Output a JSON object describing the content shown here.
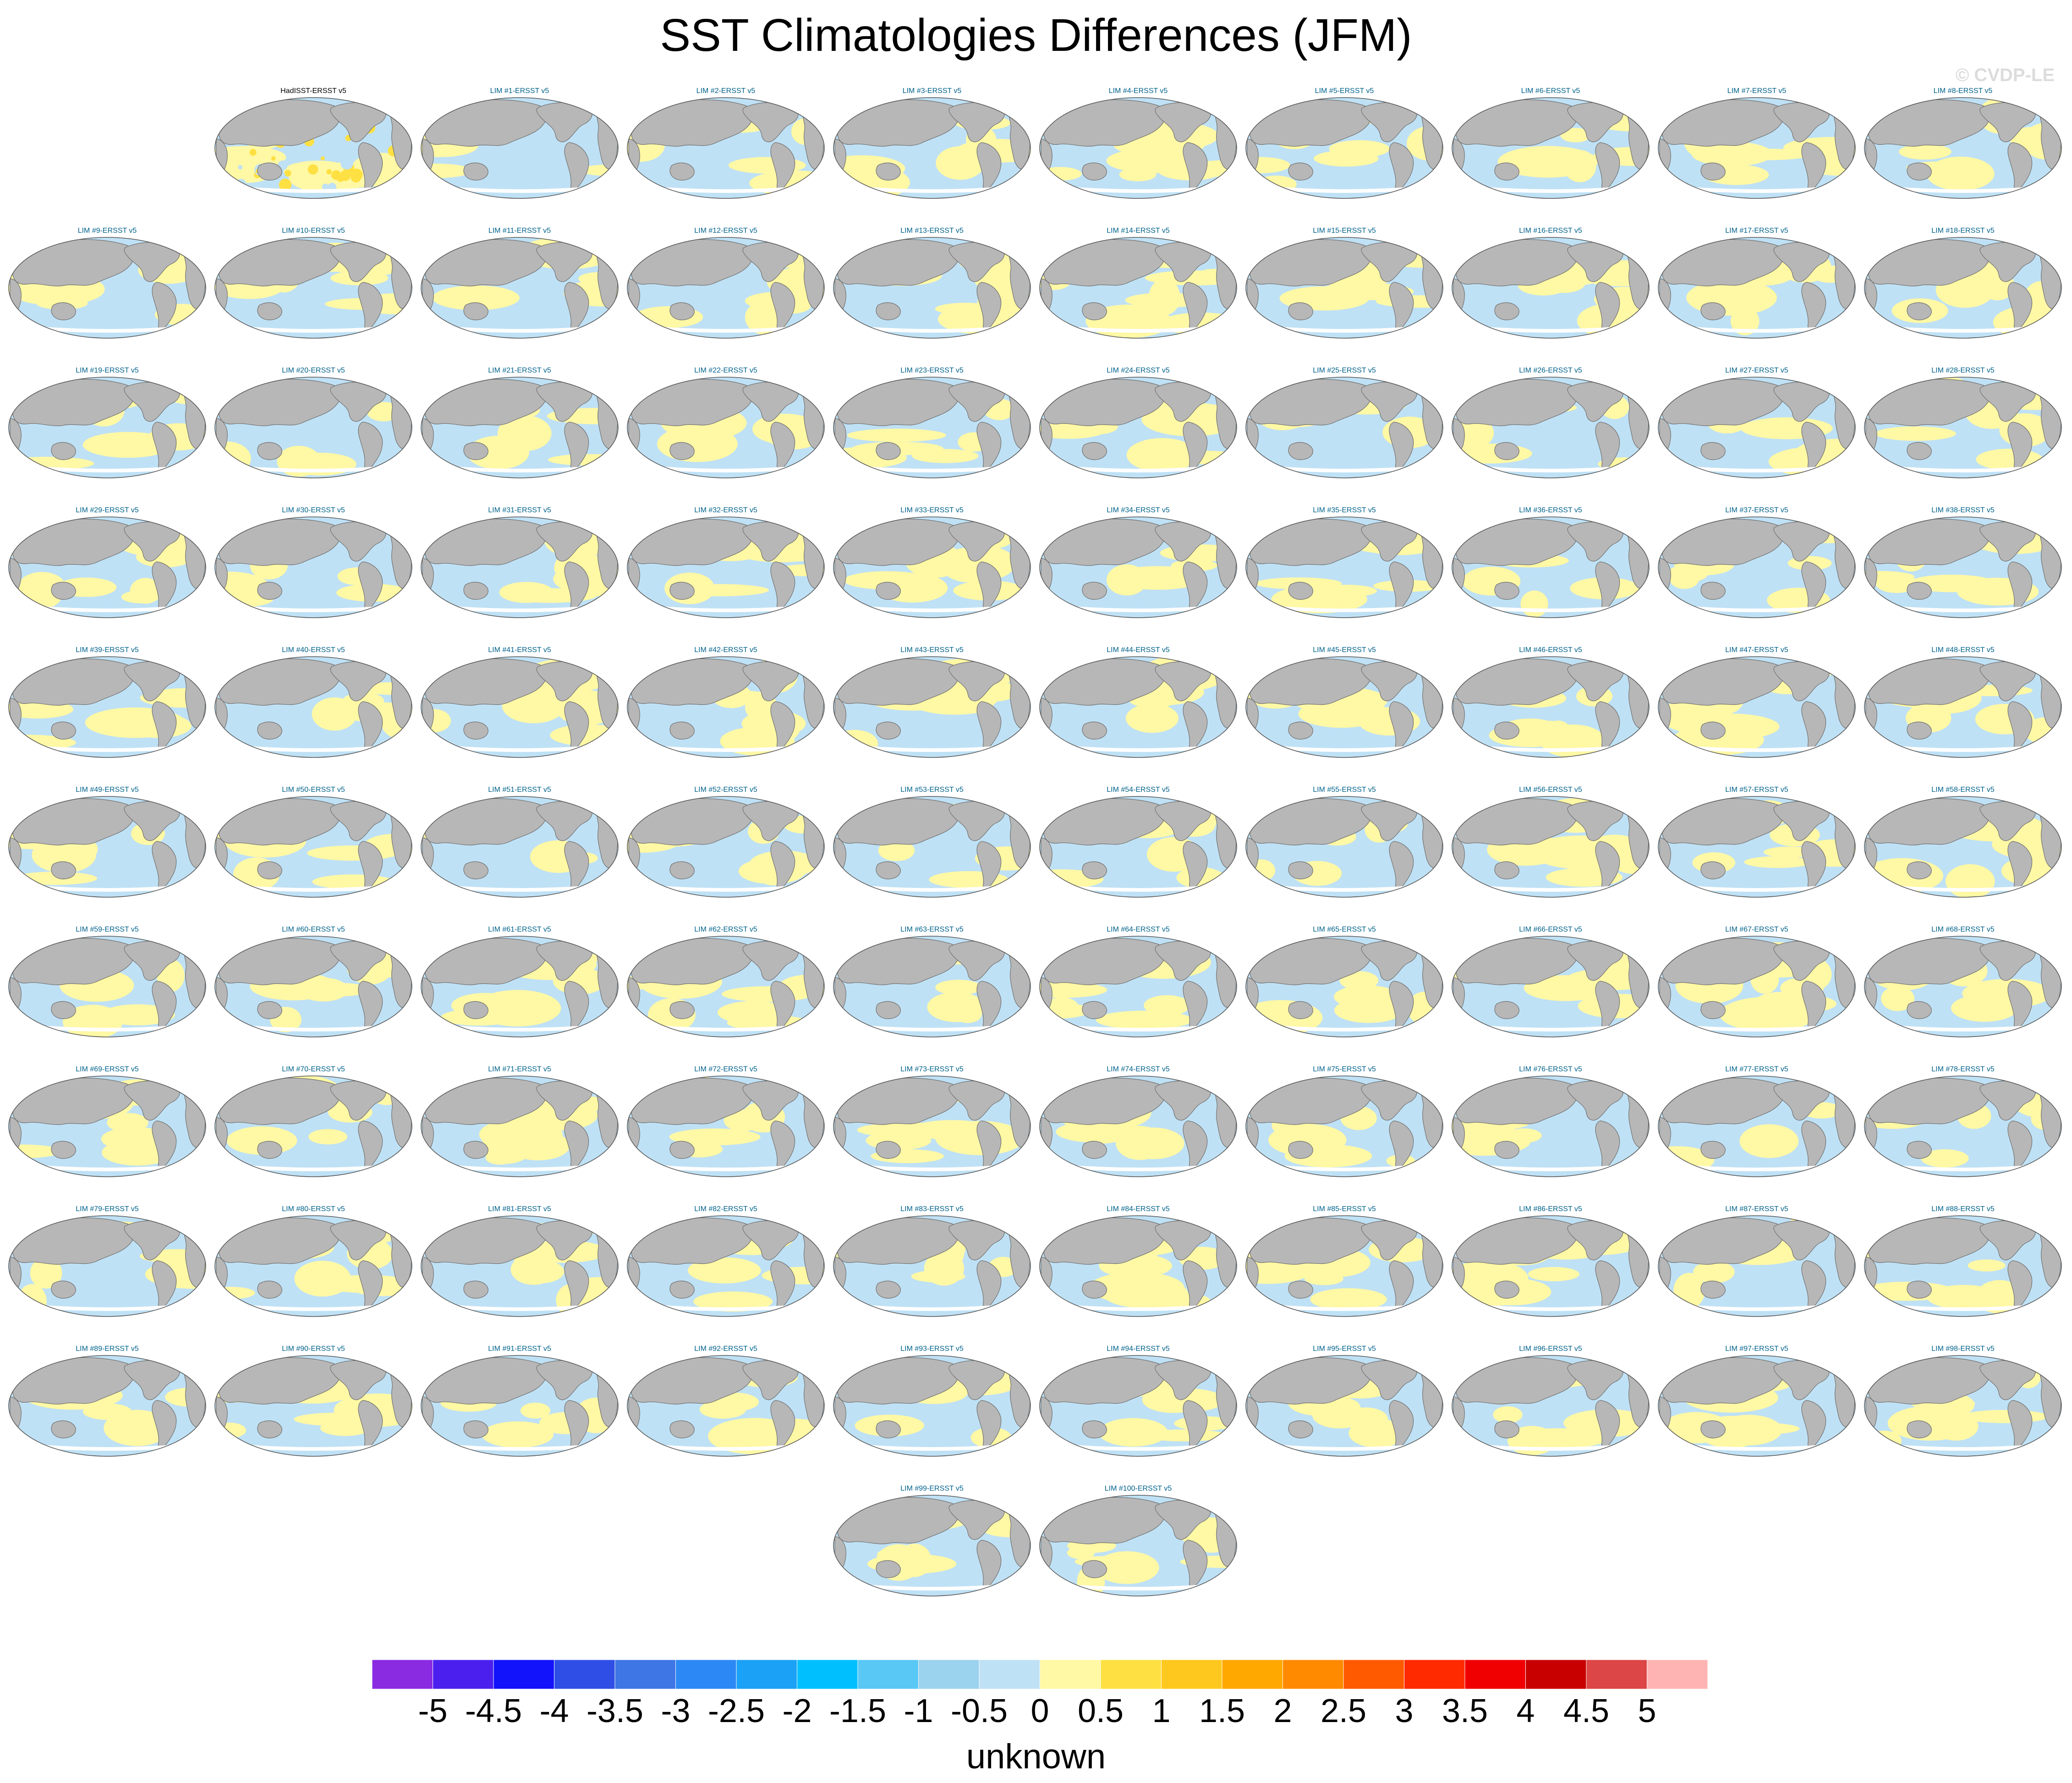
{
  "title": "SST Climatologies Differences (JFM)",
  "watermark": "© CVDP-LE",
  "colors": {
    "land": "#b7b7b7",
    "ocean_positive": "#fff8a5",
    "ocean_negative": "#bfe1f5",
    "ice": "#ffffff",
    "panel_label_obs": "#000000",
    "panel_label_member": "#00628b"
  },
  "chart_data": {
    "type": "heatmap",
    "projection": "global map panels",
    "panels": [
      "HadISST-ERSST v5",
      "LIM #1-ERSST v5",
      "LIM #2-ERSST v5",
      "LIM #3-ERSST v5",
      "LIM #4-ERSST v5",
      "LIM #5-ERSST v5",
      "LIM #6-ERSST v5",
      "LIM #7-ERSST v5",
      "LIM #8-ERSST v5",
      "LIM #9-ERSST v5",
      "LIM #10-ERSST v5",
      "LIM #11-ERSST v5",
      "LIM #12-ERSST v5",
      "LIM #13-ERSST v5",
      "LIM #14-ERSST v5",
      "LIM #15-ERSST v5",
      "LIM #16-ERSST v5",
      "LIM #17-ERSST v5",
      "LIM #18-ERSST v5",
      "LIM #19-ERSST v5",
      "LIM #20-ERSST v5",
      "LIM #21-ERSST v5",
      "LIM #22-ERSST v5",
      "LIM #23-ERSST v5",
      "LIM #24-ERSST v5",
      "LIM #25-ERSST v5",
      "LIM #26-ERSST v5",
      "LIM #27-ERSST v5",
      "LIM #28-ERSST v5",
      "LIM #29-ERSST v5",
      "LIM #30-ERSST v5",
      "LIM #31-ERSST v5",
      "LIM #32-ERSST v5",
      "LIM #33-ERSST v5",
      "LIM #34-ERSST v5",
      "LIM #35-ERSST v5",
      "LIM #36-ERSST v5",
      "LIM #37-ERSST v5",
      "LIM #38-ERSST v5",
      "LIM #39-ERSST v5",
      "LIM #40-ERSST v5",
      "LIM #41-ERSST v5",
      "LIM #42-ERSST v5",
      "LIM #43-ERSST v5",
      "LIM #44-ERSST v5",
      "LIM #45-ERSST v5",
      "LIM #46-ERSST v5",
      "LIM #47-ERSST v5",
      "LIM #48-ERSST v5",
      "LIM #49-ERSST v5",
      "LIM #50-ERSST v5",
      "LIM #51-ERSST v5",
      "LIM #52-ERSST v5",
      "LIM #53-ERSST v5",
      "LIM #54-ERSST v5",
      "LIM #55-ERSST v5",
      "LIM #56-ERSST v5",
      "LIM #57-ERSST v5",
      "LIM #58-ERSST v5",
      "LIM #59-ERSST v5",
      "LIM #60-ERSST v5",
      "LIM #61-ERSST v5",
      "LIM #62-ERSST v5",
      "LIM #63-ERSST v5",
      "LIM #64-ERSST v5",
      "LIM #65-ERSST v5",
      "LIM #66-ERSST v5",
      "LIM #67-ERSST v5",
      "LIM #68-ERSST v5",
      "LIM #69-ERSST v5",
      "LIM #70-ERSST v5",
      "LIM #71-ERSST v5",
      "LIM #72-ERSST v5",
      "LIM #73-ERSST v5",
      "LIM #74-ERSST v5",
      "LIM #75-ERSST v5",
      "LIM #76-ERSST v5",
      "LIM #77-ERSST v5",
      "LIM #78-ERSST v5",
      "LIM #79-ERSST v5",
      "LIM #80-ERSST v5",
      "LIM #81-ERSST v5",
      "LIM #82-ERSST v5",
      "LIM #83-ERSST v5",
      "LIM #84-ERSST v5",
      "LIM #85-ERSST v5",
      "LIM #86-ERSST v5",
      "LIM #87-ERSST v5",
      "LIM #88-ERSST v5",
      "LIM #89-ERSST v5",
      "LIM #90-ERSST v5",
      "LIM #91-ERSST v5",
      "LIM #92-ERSST v5",
      "LIM #93-ERSST v5",
      "LIM #94-ERSST v5",
      "LIM #95-ERSST v5",
      "LIM #96-ERSST v5",
      "LIM #97-ERSST v5",
      "LIM #98-ERSST v5",
      "LIM #99-ERSST v5",
      "LIM #100-ERSST v5"
    ],
    "panel_rows": [
      9,
      10,
      10,
      10,
      10,
      10,
      10,
      10,
      10,
      10,
      2
    ],
    "colorbar": {
      "label": "unknown",
      "tick_labels": [
        "-5",
        "-4.5",
        "-4",
        "-3.5",
        "-3",
        "-2.5",
        "-2",
        "-1.5",
        "-1",
        "-0.5",
        "0",
        "0.5",
        "1",
        "1.5",
        "2",
        "2.5",
        "3",
        "3.5",
        "4",
        "4.5",
        "5"
      ],
      "colors": [
        "#8a2be2",
        "#4b20ee",
        "#1212fb",
        "#2e4ee6",
        "#3f76e6",
        "#2c88f5",
        "#1ba1f5",
        "#00bfff",
        "#5ac8f5",
        "#9bd2ee",
        "#bfe1f5",
        "#fff8a5",
        "#ffe042",
        "#ffc81e",
        "#ffa800",
        "#ff8a00",
        "#ff5a00",
        "#ff2a00",
        "#f00000",
        "#c80000",
        "#dc4646",
        "#ffb4b4"
      ]
    }
  }
}
